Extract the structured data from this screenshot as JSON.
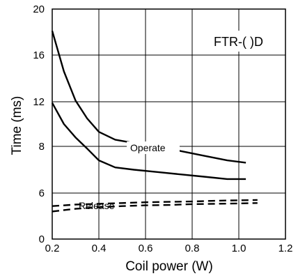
{
  "chart_data": {
    "type": "line",
    "title": "FTR-( )D",
    "xlabel": "Coil power (W)",
    "ylabel": "Time (ms)",
    "xlim": [
      0.2,
      1.2
    ],
    "ylim": [
      0,
      20
    ],
    "x_ticks": [
      "0.2",
      "0.4",
      "0.6",
      "0.8",
      "1.0",
      "1.2"
    ],
    "y_ticks": [
      "0",
      "6",
      "8",
      "12",
      "16",
      "20"
    ],
    "grid": true,
    "series": [
      {
        "name": "Operate",
        "style": "solid",
        "points": [
          [
            0.2,
            18.1
          ],
          [
            0.25,
            14.6
          ],
          [
            0.3,
            12.1
          ],
          [
            0.35,
            10.5
          ],
          [
            0.4,
            9.3
          ],
          [
            0.47,
            8.6
          ],
          [
            0.55,
            8.3
          ],
          [
            0.65,
            8.0
          ],
          [
            0.75,
            7.8
          ],
          [
            0.85,
            7.6
          ],
          [
            0.95,
            7.4
          ],
          [
            1.03,
            7.3
          ]
        ]
      },
      {
        "name": "",
        "style": "solid",
        "points": [
          [
            0.2,
            11.9
          ],
          [
            0.25,
            10.0
          ],
          [
            0.3,
            8.8
          ],
          [
            0.35,
            7.9
          ],
          [
            0.4,
            7.4
          ],
          [
            0.47,
            7.1
          ],
          [
            0.55,
            7.0
          ],
          [
            0.65,
            6.9
          ],
          [
            0.75,
            6.8
          ],
          [
            0.85,
            6.7
          ],
          [
            0.95,
            6.6
          ],
          [
            1.03,
            6.6
          ]
        ]
      },
      {
        "name": "Release",
        "style": "dashed",
        "points": [
          [
            0.2,
            4.3
          ],
          [
            0.3,
            4.5
          ],
          [
            0.4,
            4.6
          ],
          [
            0.5,
            4.7
          ],
          [
            0.6,
            4.8
          ],
          [
            0.7,
            4.85
          ],
          [
            0.8,
            4.9
          ],
          [
            0.9,
            5.0
          ],
          [
            1.0,
            5.05
          ],
          [
            1.08,
            5.1
          ]
        ]
      },
      {
        "name": "",
        "style": "dashed",
        "points": [
          [
            0.2,
            3.6
          ],
          [
            0.3,
            3.95
          ],
          [
            0.4,
            4.15
          ],
          [
            0.5,
            4.3
          ],
          [
            0.6,
            4.4
          ],
          [
            0.7,
            4.45
          ],
          [
            0.8,
            4.55
          ],
          [
            0.9,
            4.6
          ],
          [
            1.0,
            4.65
          ],
          [
            1.08,
            4.7
          ]
        ]
      }
    ],
    "annotations": [
      "Operate",
      "Release"
    ]
  }
}
